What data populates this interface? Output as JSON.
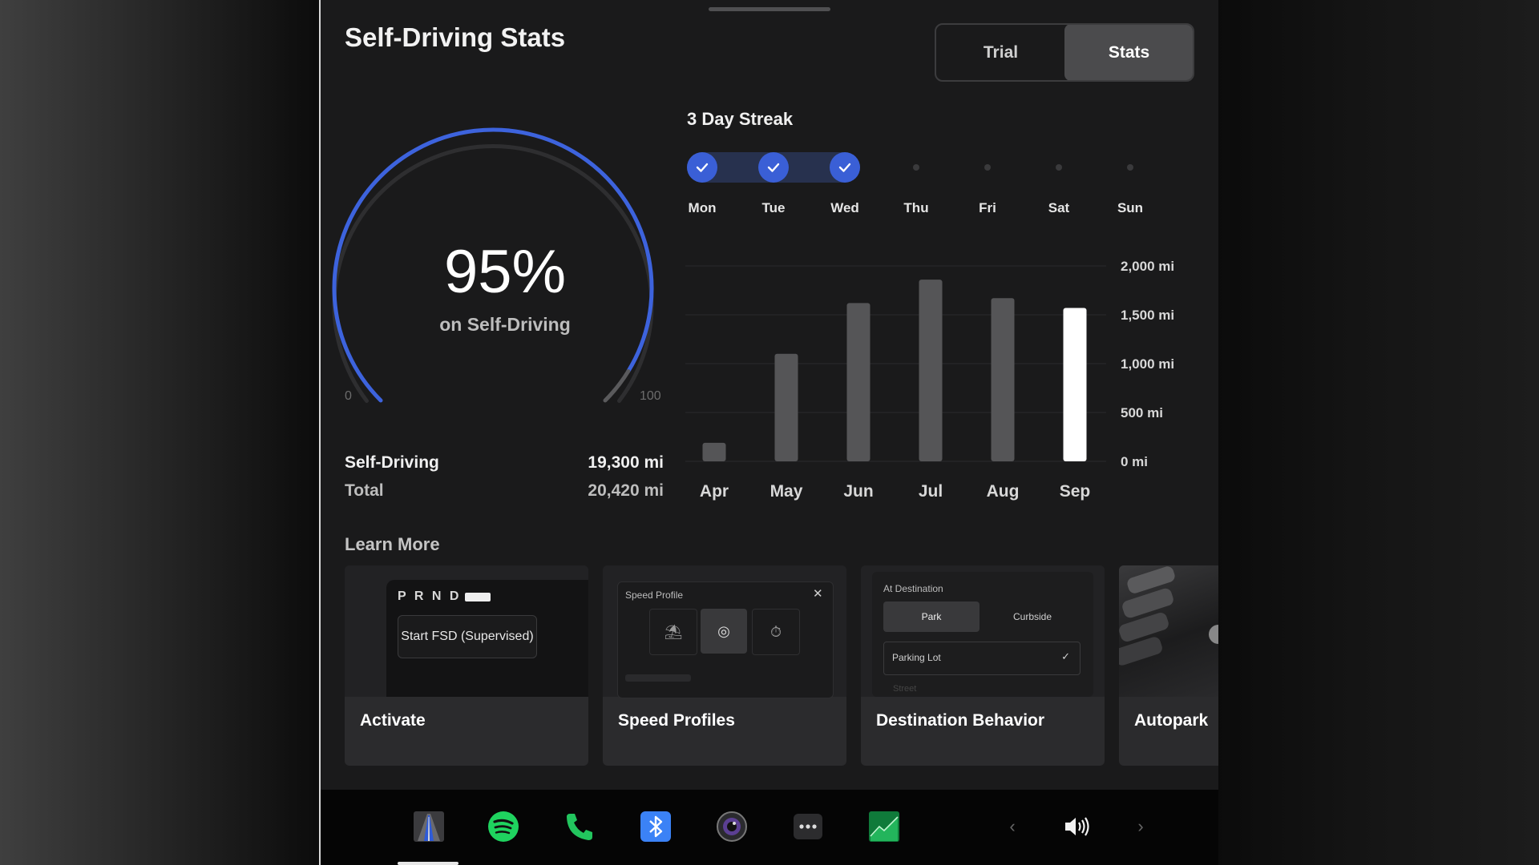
{
  "header": {
    "title": "Self-Driving Stats"
  },
  "toggle": {
    "options": [
      "Trial",
      "Stats"
    ],
    "selected": "Stats"
  },
  "gauge": {
    "percent_label": "95%",
    "percent_value": 95,
    "subtitle": "on Self-Driving",
    "min_label": "0",
    "max_label": "100",
    "accent_color": "#3d63dd"
  },
  "stats": {
    "self_driving_label": "Self-Driving",
    "self_driving_value": "19,300 mi",
    "total_label": "Total",
    "total_value": "20,420 mi"
  },
  "streak": {
    "title": "3 Day Streak",
    "days": [
      {
        "label": "Mon",
        "done": true
      },
      {
        "label": "Tue",
        "done": true
      },
      {
        "label": "Wed",
        "done": true
      },
      {
        "label": "Thu",
        "done": false
      },
      {
        "label": "Fri",
        "done": false
      },
      {
        "label": "Sat",
        "done": false
      },
      {
        "label": "Sun",
        "done": false
      }
    ]
  },
  "chart_data": {
    "type": "bar",
    "categories": [
      "Apr",
      "May",
      "Jun",
      "Jul",
      "Aug",
      "Sep"
    ],
    "values": [
      190,
      1100,
      1620,
      1860,
      1670,
      1570
    ],
    "highlight_index": 5,
    "y_ticks": [
      "0 mi",
      "500 mi",
      "1,000 mi",
      "1,500 mi",
      "2,000 mi"
    ],
    "ylim": [
      0,
      2000
    ],
    "grid": true,
    "bar_color": "#555557",
    "highlight_color": "#ffffff"
  },
  "learn_more": {
    "title": "Learn More",
    "cards": [
      {
        "label": "Activate",
        "gear_text": "P R N D",
        "button_text": "Start FSD (Supervised)"
      },
      {
        "label": "Speed Profiles",
        "panel_title": "Speed Profile"
      },
      {
        "label": "Destination Behavior",
        "panel_title": "At Destination",
        "opt1": "Park",
        "opt2": "Curbside",
        "select_value": "Parking Lot",
        "next_option": "Street"
      },
      {
        "label": "Autopark"
      }
    ]
  },
  "dock": {
    "icons": [
      "car-icon",
      "spotify-icon",
      "phone-icon",
      "bluetooth-icon",
      "camera-icon",
      "more-icon",
      "stocks-icon"
    ],
    "volume": "speaker-icon"
  }
}
